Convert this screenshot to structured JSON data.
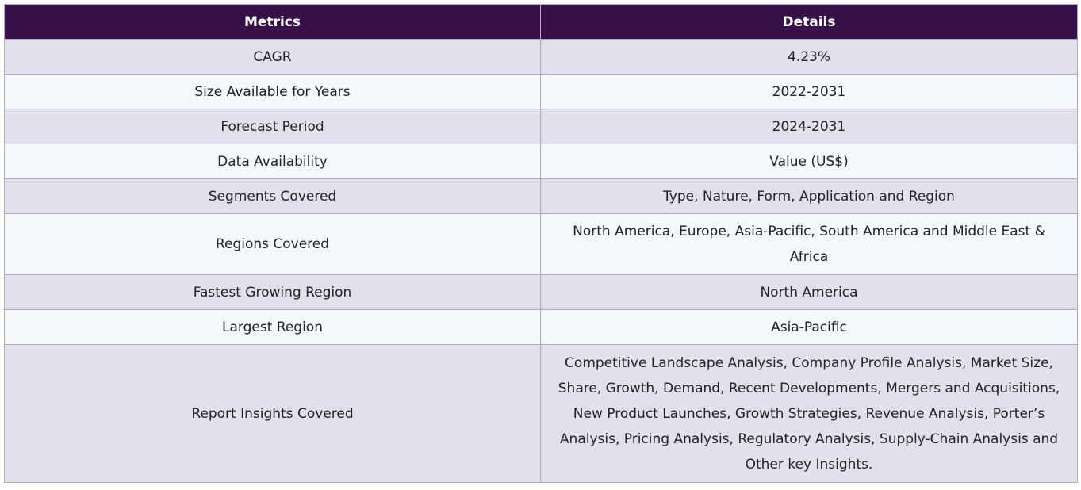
{
  "table": {
    "headers": [
      "Metrics",
      "Details"
    ],
    "rows": [
      {
        "metric": "CAGR",
        "detail": "4.23%"
      },
      {
        "metric": "Size Available for Years",
        "detail": "2022-2031"
      },
      {
        "metric": "Forecast Period",
        "detail": "2024-2031"
      },
      {
        "metric": "Data Availability",
        "detail": "Value (US$)"
      },
      {
        "metric": "Segments Covered",
        "detail": "Type, Nature, Form, Application and Region"
      },
      {
        "metric": "Regions Covered",
        "detail": "North America, Europe, Asia-Pacific, South America and Middle East & Africa"
      },
      {
        "metric": "Fastest Growing Region",
        "detail": "North America"
      },
      {
        "metric": "Largest Region",
        "detail": "Asia-Pacific"
      },
      {
        "metric": "Report Insights Covered",
        "detail": "Competitive Landscape Analysis, Company Profile Analysis, Market Size, Share, Growth, Demand, Recent Developments, Mergers and Acquisitions, New Product Launches, Growth Strategies, Revenue Analysis, Porter’s Analysis, Pricing Analysis, Regulatory Analysis, Supply-Chain Analysis and Other key Insights."
      }
    ]
  },
  "colors": {
    "header_bg": "#37104a",
    "header_text": "#ffffff",
    "row_odd_bg": "#e3dfec",
    "row_even_bg": "#f2f8fb",
    "border": "#b3a9c6"
  }
}
